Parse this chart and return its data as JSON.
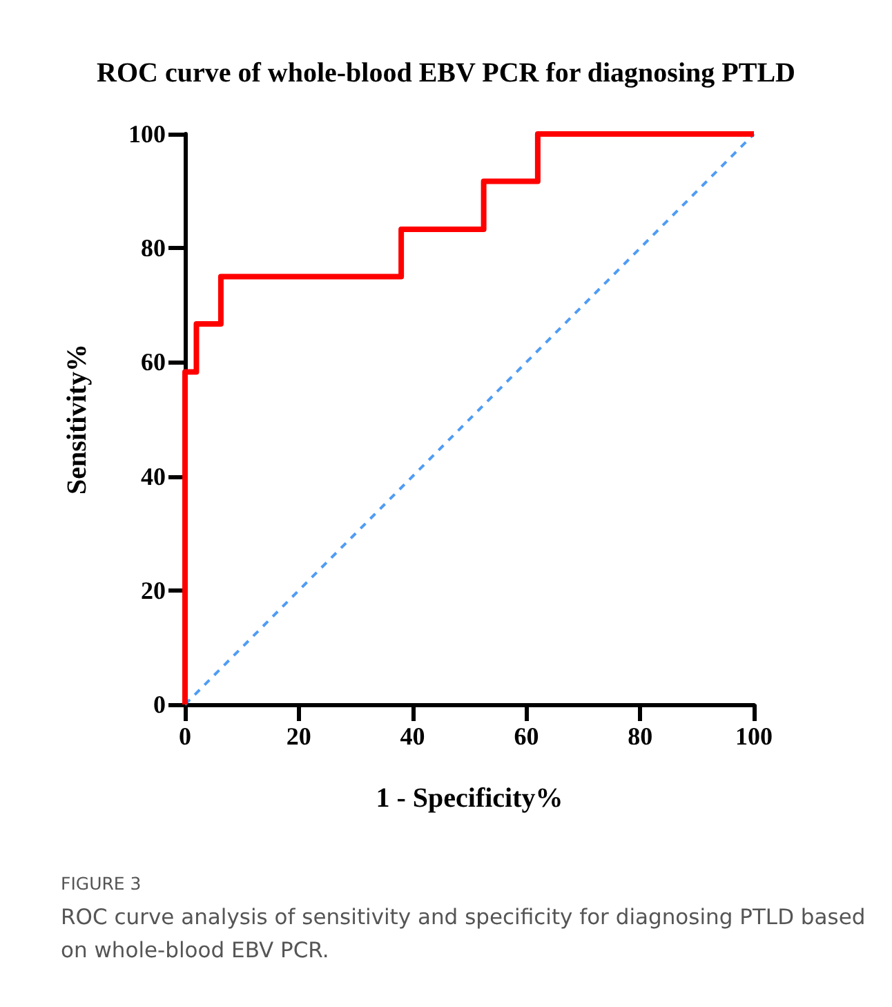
{
  "chart_data": {
    "type": "line",
    "title": "ROC curve of whole-blood EBV PCR for diagnosing PTLD",
    "xlabel": "1 - Specificity%",
    "ylabel": "Sensitivity%",
    "annotations": [
      "FIGURE 3",
      "ROC curve analysis of sensitivity and specificity for diagnosing PTLD based on whole-blood EBV PCR."
    ],
    "series": [
      {
        "color": "#ff0000",
        "line_style": "solid",
        "x": [
          0,
          0,
          0,
          2,
          2,
          6.3,
          6.3,
          38,
          38,
          52.5,
          52.5,
          62,
          62,
          100
        ],
        "values": [
          0,
          8.3,
          58.3,
          58.3,
          66.7,
          66.7,
          75,
          75,
          83.3,
          83.3,
          91.7,
          91.7,
          100,
          100
        ]
      },
      {
        "color": "#4f9cf5",
        "line_style": "dashed",
        "x": [
          0,
          100
        ],
        "values": [
          0,
          100
        ]
      }
    ],
    "xlim": [
      0,
      100
    ],
    "xticks": [
      0,
      20,
      40,
      60,
      80,
      100
    ],
    "ylim": [
      0,
      100
    ],
    "yticks": [
      0,
      20,
      40,
      60,
      80,
      100
    ],
    "grid": false,
    "marker": "none"
  }
}
